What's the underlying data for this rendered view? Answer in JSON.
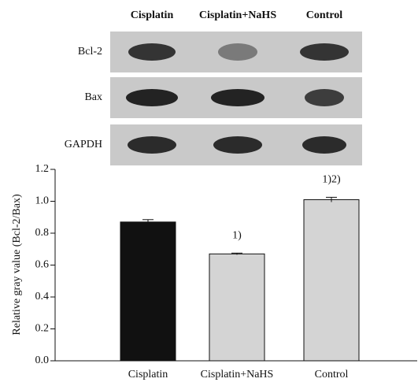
{
  "blot": {
    "columns": [
      "Cisplatin",
      "Cisplatin+NaHS",
      "Control"
    ],
    "rows": [
      "Bcl-2",
      "Bax",
      "GAPDH"
    ]
  },
  "chart_data": {
    "type": "bar",
    "y_label": "Relative gray value (Bcl-2/Bax)",
    "categories": [
      "Cisplatin",
      "Cisplatin+NaHS",
      "Control"
    ],
    "values": [
      0.87,
      0.67,
      1.01
    ],
    "errors": [
      0.015,
      0.005,
      0.015
    ],
    "colors": [
      "#111111",
      "#d4d4d4",
      "#d4d4d4"
    ],
    "annotations": [
      null,
      "1)",
      "1)2)"
    ],
    "ylim": [
      0,
      1.2
    ],
    "yticks": [
      {
        "value": 0,
        "label": "0.0"
      },
      0.2,
      0.4,
      0.6,
      0.8,
      {
        "value": 1,
        "label": "1.0"
      },
      1.2
    ],
    "grid": false
  }
}
